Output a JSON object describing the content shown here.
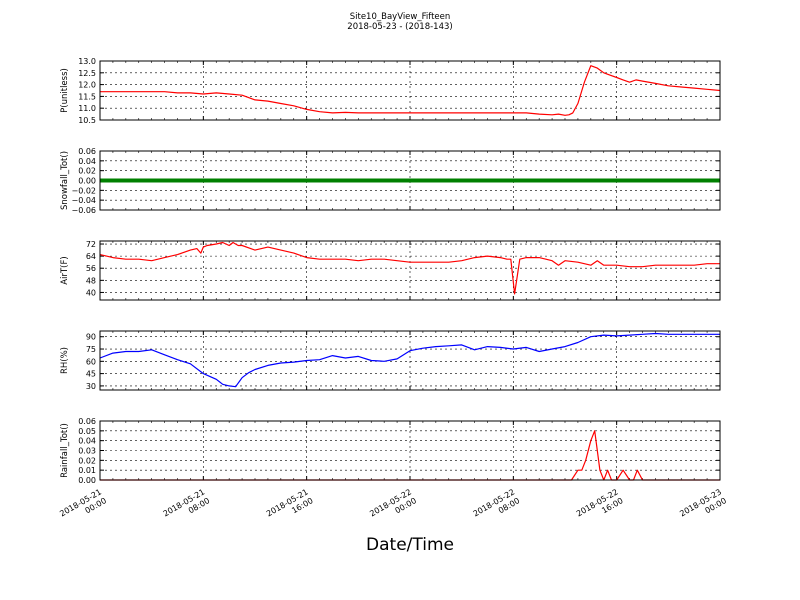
{
  "figure": {
    "title_line1": "Site10_BayView_Fifteen",
    "title_line2": "2018-05-23 - (2018-143)",
    "xlabel": "Date/Time",
    "x_ticks": [
      {
        "line1": "2018-05-21",
        "line2": "00:00"
      },
      {
        "line1": "2018-05-21",
        "line2": "08:00"
      },
      {
        "line1": "2018-05-21",
        "line2": "16:00"
      },
      {
        "line1": "2018-05-22",
        "line2": "00:00"
      },
      {
        "line1": "2018-05-22",
        "line2": "08:00"
      },
      {
        "line1": "2018-05-22",
        "line2": "16:00"
      },
      {
        "line1": "2018-05-23",
        "line2": "00:00"
      }
    ]
  },
  "colors": {
    "red": "#ff0000",
    "green": "#008000",
    "blue": "#0000ff"
  },
  "chart_data": [
    {
      "type": "line",
      "ylabel": "P(unitless)",
      "ylim": [
        10.5,
        13.0
      ],
      "yticks": [
        "10.5",
        "11.0",
        "11.5",
        "12.0",
        "12.5",
        "13.0"
      ],
      "xlim": [
        0,
        48
      ],
      "grid": true,
      "color": "#ff0000",
      "series": [
        {
          "x": [
            0,
            1,
            2,
            3,
            4,
            5,
            6,
            7,
            8,
            9,
            10,
            11,
            12,
            13,
            14,
            15,
            16,
            17,
            18,
            19,
            20,
            21,
            22,
            23,
            24,
            25,
            26,
            27,
            28,
            29,
            30,
            31,
            32,
            33,
            34,
            35,
            35.5,
            36,
            36.3,
            36.6,
            37,
            37.5,
            38,
            38.5,
            39,
            39.5,
            40,
            40.5,
            41,
            41.5,
            42,
            43,
            44,
            45,
            46,
            47,
            48
          ],
          "y": [
            11.7,
            11.7,
            11.7,
            11.7,
            11.7,
            11.7,
            11.65,
            11.65,
            11.6,
            11.65,
            11.6,
            11.55,
            11.35,
            11.3,
            11.2,
            11.1,
            10.95,
            10.85,
            10.8,
            10.82,
            10.8,
            10.8,
            10.8,
            10.8,
            10.8,
            10.8,
            10.8,
            10.8,
            10.8,
            10.8,
            10.8,
            10.8,
            10.8,
            10.8,
            10.75,
            10.72,
            10.75,
            10.7,
            10.72,
            10.8,
            11.2,
            12.1,
            12.8,
            12.7,
            12.5,
            12.4,
            12.3,
            12.2,
            12.1,
            12.2,
            12.15,
            12.05,
            11.95,
            11.9,
            11.85,
            11.8,
            11.75
          ]
        }
      ]
    },
    {
      "type": "line",
      "ylabel": "Snowfall_Tot()",
      "ylim": [
        -0.06,
        0.06
      ],
      "yticks": [
        "−0.06",
        "−0.04",
        "−0.02",
        "0.00",
        "0.02",
        "0.04",
        "0.06"
      ],
      "xlim": [
        0,
        48
      ],
      "grid": true,
      "color": "#008000",
      "series": [
        {
          "x": [
            0,
            48
          ],
          "y": [
            0,
            0
          ]
        }
      ]
    },
    {
      "type": "line",
      "ylabel": "AirT(F)",
      "ylim": [
        35,
        74
      ],
      "yticks": [
        "40",
        "48",
        "56",
        "64",
        "72"
      ],
      "xlim": [
        0,
        48
      ],
      "grid": true,
      "color": "#ff0000",
      "series": [
        {
          "x": [
            0,
            1,
            2,
            3,
            4,
            5,
            6,
            7,
            7.5,
            7.8,
            8,
            8.3,
            9,
            9.5,
            10,
            10.3,
            10.7,
            11,
            12,
            13,
            14,
            15,
            16,
            17,
            18,
            19,
            20,
            21,
            22,
            23,
            24,
            25,
            26,
            27,
            28,
            29,
            30,
            31,
            31.5,
            31.8,
            32.1,
            32.5,
            33,
            34,
            35,
            35.5,
            36,
            37,
            38,
            38.5,
            39,
            40,
            41,
            42,
            43,
            44,
            45,
            46,
            47,
            48
          ],
          "y": [
            65,
            63,
            62,
            62,
            61,
            63,
            65,
            68,
            69,
            66,
            70,
            71,
            72,
            73,
            71,
            73,
            71,
            71,
            68,
            70,
            68,
            66,
            63,
            62,
            62,
            62,
            61,
            62,
            62,
            61,
            60,
            60,
            60,
            60,
            61,
            63,
            64,
            63,
            62,
            62,
            39,
            62,
            63,
            63,
            61,
            58,
            61,
            60,
            58,
            61,
            58,
            58,
            57,
            57,
            58,
            58,
            58,
            58,
            59,
            59
          ]
        }
      ]
    },
    {
      "type": "line",
      "ylabel": "RH(%)",
      "ylim": [
        25,
        97
      ],
      "yticks": [
        "30",
        "45",
        "60",
        "75",
        "90"
      ],
      "xlim": [
        0,
        48
      ],
      "grid": true,
      "color": "#0000ff",
      "series": [
        {
          "x": [
            0,
            1,
            2,
            3,
            4,
            5,
            6,
            7,
            8,
            9,
            9.5,
            10,
            10.5,
            11,
            11.5,
            12,
            13,
            14,
            15,
            16,
            17,
            18,
            19,
            20,
            21,
            22,
            23,
            24,
            25,
            26,
            27,
            28,
            29,
            30,
            31,
            32,
            33,
            34,
            35,
            36,
            37,
            38,
            39,
            40,
            41,
            42,
            43,
            44,
            45,
            46,
            47,
            48
          ],
          "y": [
            64,
            70,
            72,
            72,
            74,
            68,
            62,
            57,
            45,
            38,
            32,
            30,
            29,
            40,
            46,
            50,
            55,
            58,
            59,
            61,
            62,
            67,
            64,
            66,
            61,
            60,
            63,
            73,
            76,
            78,
            79,
            80,
            74,
            78,
            77,
            75,
            77,
            72,
            75,
            78,
            83,
            90,
            92,
            91,
            92,
            93,
            94,
            93,
            93,
            93,
            93,
            93
          ]
        }
      ]
    },
    {
      "type": "line",
      "ylabel": "Rainfall_Tot()",
      "ylim": [
        0.0,
        0.06
      ],
      "yticks": [
        "0.00",
        "0.01",
        "0.02",
        "0.03",
        "0.04",
        "0.05",
        "0.06"
      ],
      "xlim": [
        0,
        48
      ],
      "grid": true,
      "color": "#ff0000",
      "series": [
        {
          "x": [
            0,
            36.5,
            37,
            37.3,
            37.6,
            38,
            38.3,
            38.7,
            39,
            39.3,
            39.6,
            40,
            40.5,
            41,
            41.3,
            41.6,
            42,
            42.5,
            48
          ],
          "y": [
            0,
            0,
            0.01,
            0.01,
            0.02,
            0.04,
            0.05,
            0.01,
            0,
            0.01,
            0,
            0,
            0.01,
            0,
            0,
            0.01,
            0,
            0,
            0
          ]
        }
      ]
    }
  ]
}
